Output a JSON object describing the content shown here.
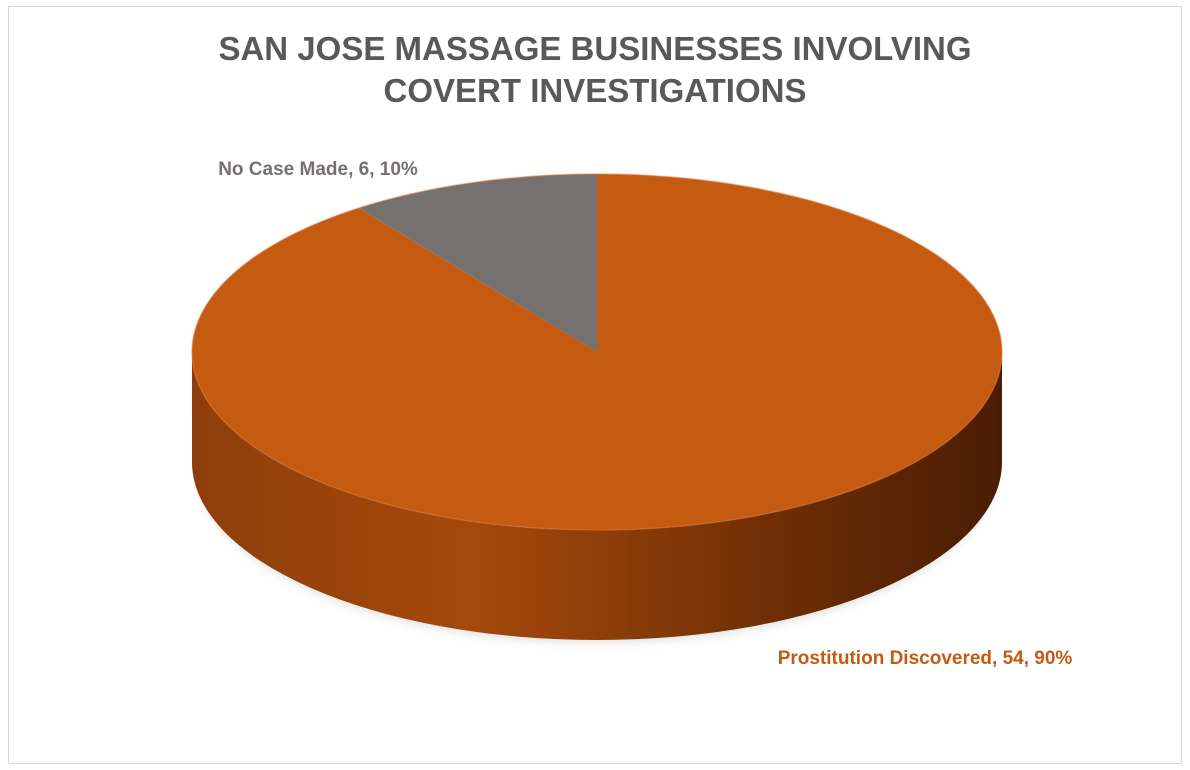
{
  "chart_data": {
    "type": "pie",
    "title_lines": [
      "SAN JOSE MASSAGE BUSINESSES INVOLVING",
      "COVERT INVESTIGATIONS"
    ],
    "style": "3d",
    "slices": [
      {
        "label": "Prostitution Discovered",
        "value": 54,
        "percent": 90,
        "color": "#c55a11",
        "data_label": "Prostitution Discovered, 54, 90%"
      },
      {
        "label": "No Case Made",
        "value": 6,
        "percent": 10,
        "color": "#767171",
        "data_label": "No Case Made, 6, 10%"
      }
    ]
  },
  "colors": {
    "title": "#595959",
    "frame": "#d9d9d9"
  }
}
